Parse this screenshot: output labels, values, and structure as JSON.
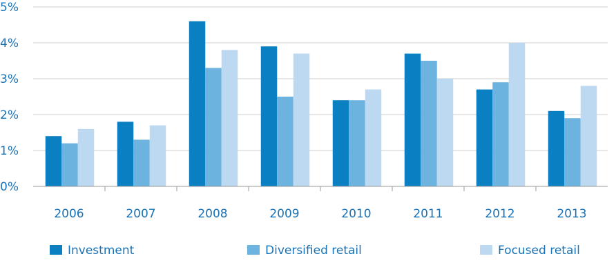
{
  "chart_data": {
    "type": "bar",
    "categories": [
      "2006",
      "2007",
      "2008",
      "2009",
      "2010",
      "2011",
      "2012",
      "2013"
    ],
    "series": [
      {
        "name": "Investment",
        "color": "#0a7fc2",
        "values": [
          1.4,
          1.8,
          4.6,
          3.9,
          2.4,
          3.7,
          2.7,
          2.1
        ]
      },
      {
        "name": "Diversified retail",
        "color": "#6cb3e0",
        "values": [
          1.2,
          1.3,
          3.3,
          2.5,
          2.4,
          3.5,
          2.9,
          1.9
        ]
      },
      {
        "name": "Focused retail",
        "color": "#bdd9f1",
        "values": [
          1.6,
          1.7,
          3.8,
          3.7,
          2.7,
          3.0,
          4.0,
          2.8
        ]
      }
    ],
    "yticks": [
      "0%",
      "1%",
      "2%",
      "3%",
      "4%",
      "5%"
    ],
    "ylim": [
      0,
      5
    ],
    "title": "",
    "xlabel": "",
    "ylabel": "",
    "grid": true,
    "legend": "bottom",
    "text_color": "#1a73b5",
    "grid_color": "#cfcfcf"
  }
}
